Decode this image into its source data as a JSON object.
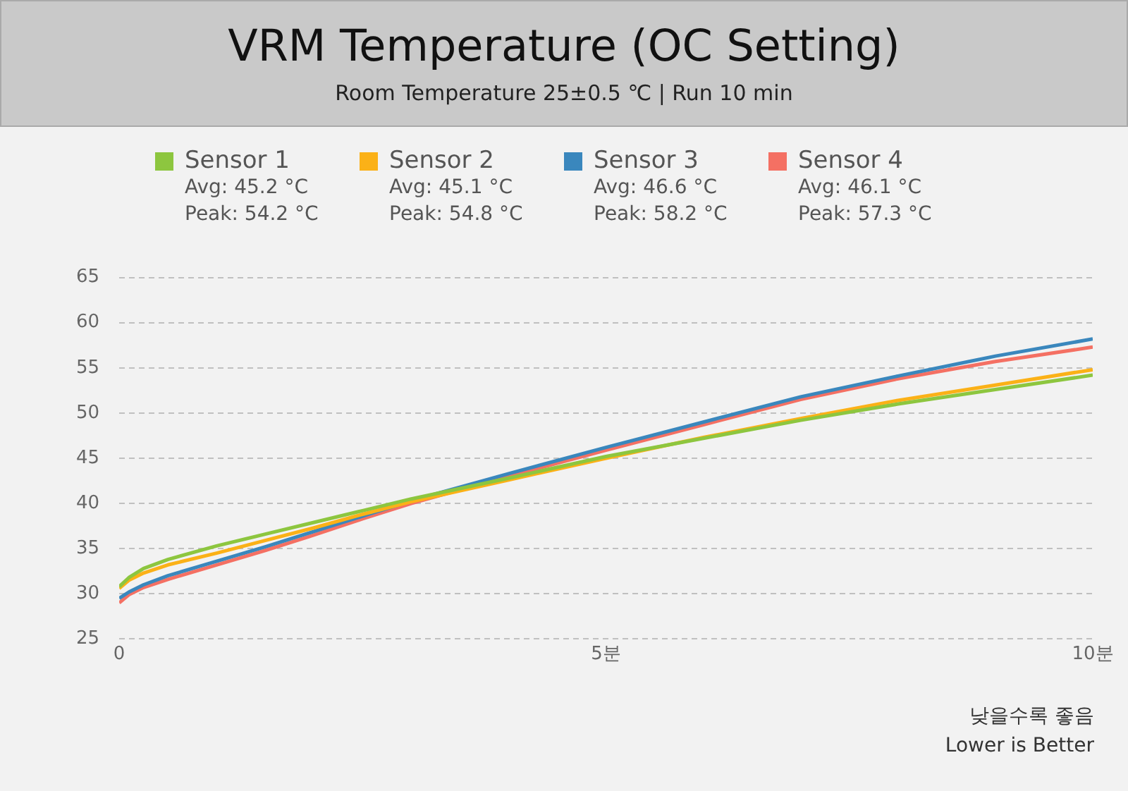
{
  "chart_data": {
    "type": "line",
    "title": "VRM Temperature (OC Setting)",
    "subtitle": "Room Temperature 25±0.5 ℃  |  Run 10 min",
    "x": [
      0,
      0.1,
      0.25,
      0.5,
      1,
      1.5,
      2,
      2.5,
      3,
      4,
      5,
      6,
      7,
      8,
      9,
      10
    ],
    "series": [
      {
        "name": "Sensor 1",
        "color": "#8dc63f",
        "values": [
          30.8,
          31.8,
          32.8,
          33.8,
          35.3,
          36.6,
          37.9,
          39.2,
          40.5,
          42.8,
          45.2,
          47.2,
          49.2,
          51.0,
          52.6,
          54.2
        ]
      },
      {
        "name": "Sensor 2",
        "color": "#fbb117",
        "values": [
          30.6,
          31.5,
          32.3,
          33.2,
          34.5,
          35.9,
          37.3,
          38.8,
          40.2,
          42.6,
          45.0,
          47.3,
          49.4,
          51.4,
          53.1,
          54.8
        ]
      },
      {
        "name": "Sensor 3",
        "color": "#3a87bd",
        "values": [
          29.5,
          30.2,
          31.0,
          32.0,
          33.6,
          35.2,
          36.9,
          38.6,
          40.3,
          43.3,
          46.2,
          49.0,
          51.8,
          54.1,
          56.3,
          58.2
        ]
      },
      {
        "name": "Sensor 4",
        "color": "#f47063",
        "values": [
          29.0,
          29.9,
          30.7,
          31.6,
          33.2,
          34.8,
          36.5,
          38.3,
          40.0,
          43.0,
          45.9,
          48.7,
          51.5,
          53.8,
          55.7,
          57.3
        ]
      }
    ],
    "annotations": [
      "Avg: 45.2 °C",
      "Peak: 54.2 °C",
      "Avg: 45.1 °C",
      "Peak: 54.8 °C",
      "Avg: 46.6 °C",
      "Peak: 58.2 °C",
      "Avg: 46.1 °C",
      "Peak: 57.3 °C",
      "낮을수록 좋음",
      "Lower is Better"
    ],
    "xlim": [
      0,
      10
    ],
    "xticks": [
      0,
      {
        "value": 5,
        "label": "5분"
      },
      {
        "value": 10,
        "label": "10분"
      }
    ],
    "ylim": [
      25,
      65
    ],
    "yticks": [
      25,
      30,
      35,
      40,
      45,
      50,
      55,
      60,
      65
    ],
    "grid": "y",
    "legend": "top",
    "marker": "none",
    "line_style": "solid"
  }
}
